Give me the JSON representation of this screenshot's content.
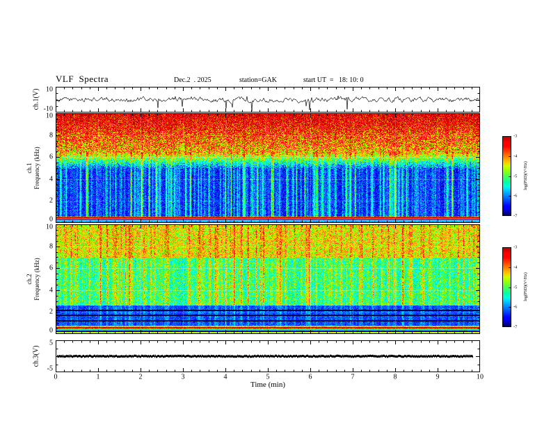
{
  "title": "VLF  Spectra",
  "header": {
    "date": "Dec.2  . 2025",
    "station": "station=GAK",
    "start_ut": "start UT  =   18: 10: 0"
  },
  "chart_data": {
    "type": "heatmap",
    "description": "VLF spectra quicklook: ch.1 voltage waveform, ch.1 and ch.2 spectrograms (0-10 kHz) with jet colormap, ch.3 voltage trace, versus time 0-10 min",
    "xlabel": "Time (min)",
    "xlim": [
      0,
      10
    ],
    "xticks": [
      0,
      1,
      2,
      3,
      4,
      5,
      6,
      7,
      8,
      9,
      10
    ],
    "panels": [
      {
        "id": "ch1-waveform",
        "kind": "waveform",
        "ylabel": "ch.1(V)",
        "ylim": [
          -10,
          10
        ],
        "yticks": [
          10,
          -10
        ],
        "content": "noisy trace near 0 V with frequent downward impulse spikes reaching about -9 V"
      },
      {
        "id": "ch1-spectrogram",
        "kind": "spectrogram",
        "ylabel_l1": "ch.1",
        "ylabel_l2": "Frequency (kHz)",
        "ylim": [
          0,
          10
        ],
        "yticks": [
          10,
          8,
          6,
          4,
          2,
          0
        ],
        "content": "high PSD (red/orange/yellow) above ~6.5 kHz, low PSD (dark blue/black) below ~5 kHz with dense vertical green-yellow impulsive streaks, multicolour horizontal banding below 0.6 kHz"
      },
      {
        "id": "ch2-spectrogram",
        "kind": "spectrogram",
        "ylabel_l1": "ch.2",
        "ylabel_l2": "Frequency (kHz)",
        "ylim": [
          0,
          10
        ],
        "yticks": [
          10,
          8,
          6,
          4,
          2,
          0
        ],
        "content": "moderate PSD green/yellow speckle above ~7 kHz, cyan-green speckle 2.6-7 kHz with vertical streaks, darker blue band 0.8-2.6 kHz with dark horizontal lines, multicolour banding below 0.8 kHz"
      },
      {
        "id": "ch3-waveform",
        "kind": "flatline",
        "ylabel": "ch.3(V)",
        "ylim": [
          -5,
          5
        ],
        "yticks": [
          5,
          -5
        ],
        "content": "flat thick trace at ~0 V ending slightly before the right edge"
      }
    ],
    "colorbars": [
      {
        "label": "log(PSD)(V²/Hz)",
        "ticks": [
          -3,
          -4,
          -5,
          -6,
          -7
        ],
        "range_top": -3,
        "range_bottom": -7,
        "colormap": "jet"
      },
      {
        "label": "log(PSD)(V²/Hz)",
        "ticks": [
          -3,
          -4,
          -5,
          -6,
          -7
        ],
        "range_top": -3,
        "range_bottom": -7,
        "colormap": "jet"
      }
    ]
  },
  "colors": {
    "background": "#ffffff",
    "axis": "#000000"
  }
}
